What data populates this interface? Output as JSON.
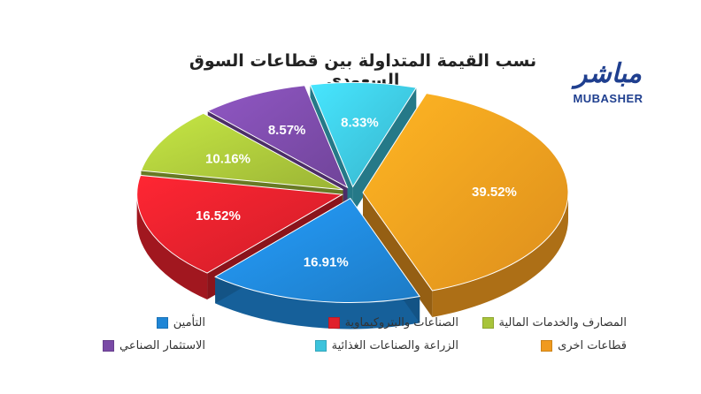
{
  "chart_data": {
    "type": "pie",
    "title": "نسب القيمة المتداولة بين قطاعات السوق السعودي",
    "slices": [
      {
        "label": "قطاعات اخرى",
        "value": 39.52,
        "value_label": "39.52%",
        "color": "#f09a1e"
      },
      {
        "label": "التأمين",
        "value": 16.91,
        "value_label": "16.91%",
        "color": "#1f86d6"
      },
      {
        "label": "الصناعات والبتروكيماوية",
        "value": 16.52,
        "value_label": "16.52%",
        "color": "#e0202b"
      },
      {
        "label": "المصارف والخدمات المالية",
        "value": 10.16,
        "value_label": "10.16%",
        "color": "#a8c43a"
      },
      {
        "label": "الاستثمار الصناعي",
        "value": 8.57,
        "value_label": "8.57%",
        "color": "#7a4aa6"
      },
      {
        "label": "الزراعة والصناعات الغذائية",
        "value": 8.33,
        "value_label": "8.33%",
        "color": "#3cc3dc"
      }
    ],
    "legend_position": "bottom"
  },
  "logo": {
    "arabic": "مباشر",
    "english": "MUBASHER"
  }
}
